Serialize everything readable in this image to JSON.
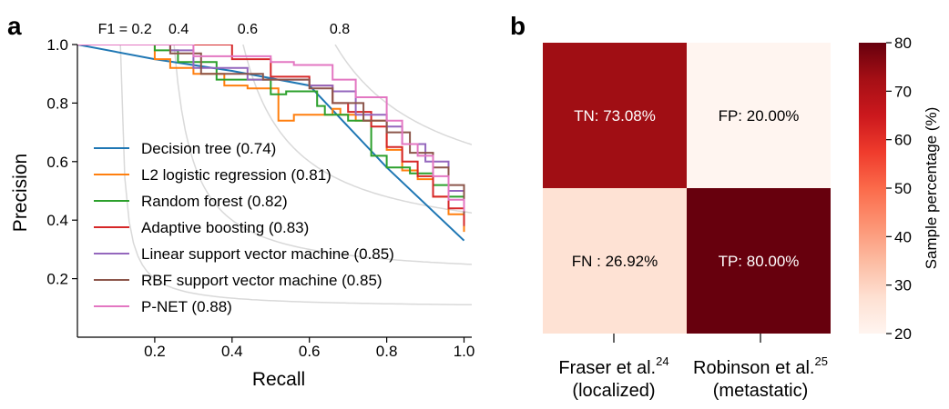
{
  "panel_a": {
    "label": "a",
    "chart_data": {
      "type": "line",
      "xlabel": "Recall",
      "ylabel": "Precision",
      "xlim": [
        0,
        1.02
      ],
      "ylim": [
        0,
        1.0
      ],
      "xticks": [
        "0.2",
        "0.4",
        "0.6",
        "0.8",
        "1.0"
      ],
      "xtick_values": [
        0.2,
        0.4,
        0.6,
        0.8,
        1.0
      ],
      "yticks": [
        "0.2",
        "0.4",
        "0.6",
        "0.8",
        "1.0"
      ],
      "ytick_values": [
        0.2,
        0.4,
        0.6,
        0.8,
        1.0
      ],
      "iso_f1": {
        "values": [
          0.2,
          0.4,
          0.6,
          0.8
        ],
        "labels": [
          "F1 = 0.2",
          "0.4",
          "0.6",
          "0.8"
        ],
        "color": "#d9d9d9"
      },
      "legend_position": "lower-left",
      "series": [
        {
          "name": "Decision tree (0.74)",
          "color": "#1f77b4",
          "x": [
            0,
            0.2,
            0.4,
            0.6,
            0.8,
            1.0
          ],
          "y": [
            1.0,
            0.95,
            0.91,
            0.86,
            0.58,
            0.33
          ]
        },
        {
          "name": "L2 logistic regression (0.81)",
          "color": "#ff7f0e",
          "x": [
            0,
            0.2,
            0.2,
            0.24,
            0.24,
            0.3,
            0.3,
            0.38,
            0.38,
            0.44,
            0.44,
            0.52,
            0.52,
            0.56,
            0.56,
            0.66,
            0.66,
            0.68,
            0.68,
            0.72,
            0.72,
            0.8,
            0.8,
            0.84,
            0.84,
            0.88,
            0.88,
            0.92,
            0.92,
            0.96,
            0.96,
            1.0,
            1.0
          ],
          "y": [
            1.0,
            1.0,
            0.95,
            0.95,
            0.92,
            0.92,
            0.9,
            0.9,
            0.86,
            0.86,
            0.85,
            0.85,
            0.74,
            0.74,
            0.76,
            0.76,
            0.78,
            0.78,
            0.76,
            0.76,
            0.74,
            0.74,
            0.64,
            0.64,
            0.57,
            0.57,
            0.54,
            0.54,
            0.48,
            0.48,
            0.42,
            0.42,
            0.36
          ]
        },
        {
          "name": "Random forest (0.82)",
          "color": "#2ca02c",
          "x": [
            0,
            0.2,
            0.2,
            0.26,
            0.26,
            0.36,
            0.36,
            0.5,
            0.5,
            0.54,
            0.54,
            0.62,
            0.62,
            0.64,
            0.64,
            0.7,
            0.7,
            0.76,
            0.76,
            0.8,
            0.8,
            0.86,
            0.86,
            0.92,
            0.92,
            0.96,
            0.96,
            1.0,
            1.0
          ],
          "y": [
            1.0,
            1.0,
            0.98,
            0.98,
            0.94,
            0.94,
            0.88,
            0.88,
            0.83,
            0.83,
            0.84,
            0.84,
            0.79,
            0.79,
            0.76,
            0.76,
            0.74,
            0.74,
            0.62,
            0.62,
            0.58,
            0.58,
            0.56,
            0.56,
            0.52,
            0.52,
            0.48,
            0.48,
            0.38
          ]
        },
        {
          "name": "Adaptive boosting (0.83)",
          "color": "#d62728",
          "x": [
            0,
            0.3,
            0.3,
            0.4,
            0.4,
            0.5,
            0.5,
            0.6,
            0.6,
            0.66,
            0.66,
            0.7,
            0.7,
            0.76,
            0.76,
            0.8,
            0.8,
            0.84,
            0.84,
            0.88,
            0.88,
            0.92,
            0.92,
            0.96,
            0.96,
            1.0,
            1.0
          ],
          "y": [
            1.0,
            1.0,
            1.0,
            1.0,
            0.95,
            0.95,
            0.89,
            0.89,
            0.86,
            0.86,
            0.8,
            0.8,
            0.77,
            0.77,
            0.72,
            0.72,
            0.65,
            0.65,
            0.6,
            0.6,
            0.55,
            0.55,
            0.48,
            0.48,
            0.44,
            0.44,
            0.38
          ]
        },
        {
          "name": "Linear support vector machine (0.85)",
          "color": "#9467bd",
          "x": [
            0,
            0.24,
            0.24,
            0.3,
            0.3,
            0.44,
            0.44,
            0.6,
            0.6,
            0.66,
            0.66,
            0.72,
            0.72,
            0.8,
            0.8,
            0.84,
            0.84,
            0.9,
            0.9,
            0.96,
            0.96,
            1.0,
            1.0
          ],
          "y": [
            1.0,
            1.0,
            0.98,
            0.98,
            0.92,
            0.92,
            0.88,
            0.88,
            0.86,
            0.86,
            0.84,
            0.84,
            0.76,
            0.76,
            0.72,
            0.72,
            0.66,
            0.66,
            0.6,
            0.6,
            0.5,
            0.5,
            0.45
          ]
        },
        {
          "name": "RBF support vector machine (0.85)",
          "color": "#8c564b",
          "x": [
            0,
            0.24,
            0.24,
            0.32,
            0.32,
            0.48,
            0.48,
            0.6,
            0.6,
            0.66,
            0.66,
            0.74,
            0.74,
            0.8,
            0.8,
            0.86,
            0.86,
            0.92,
            0.92,
            0.96,
            0.96,
            1.0,
            1.0
          ],
          "y": [
            1.0,
            1.0,
            0.97,
            0.97,
            0.9,
            0.9,
            0.88,
            0.88,
            0.85,
            0.85,
            0.8,
            0.8,
            0.74,
            0.74,
            0.7,
            0.7,
            0.63,
            0.63,
            0.58,
            0.58,
            0.52,
            0.52,
            0.42
          ]
        },
        {
          "name": "P-NET (0.88)",
          "color": "#e377c2",
          "x": [
            0,
            0.3,
            0.3,
            0.5,
            0.5,
            0.56,
            0.56,
            0.66,
            0.66,
            0.72,
            0.72,
            0.8,
            0.8,
            0.84,
            0.84,
            0.88,
            0.88,
            0.92,
            0.92,
            0.96,
            0.96,
            1.0,
            1.0
          ],
          "y": [
            1.0,
            1.0,
            0.96,
            0.96,
            0.94,
            0.94,
            0.93,
            0.93,
            0.88,
            0.88,
            0.82,
            0.82,
            0.74,
            0.74,
            0.66,
            0.66,
            0.62,
            0.62,
            0.55,
            0.55,
            0.47,
            0.47,
            0.43
          ]
        }
      ]
    }
  },
  "panel_b": {
    "label": "b",
    "chart_data": {
      "type": "heatmap",
      "cells": [
        {
          "text": "TN: 73.08%",
          "value": 73.08
        },
        {
          "text": "FP: 20.00%",
          "value": 20.0
        },
        {
          "text": "FN : 26.92%",
          "value": 26.92
        },
        {
          "text": "TP: 80.00%",
          "value": 80.0
        }
      ],
      "columns": [
        {
          "line1": "Fraser et al.",
          "sup": "24",
          "line2": "(localized)"
        },
        {
          "line1": "Robinson et al.",
          "sup": "25",
          "line2": "(metastatic)"
        }
      ],
      "colorbar": {
        "label": "Sample percentage (%)",
        "range": [
          20,
          80
        ],
        "ticks": [
          "20",
          "30",
          "40",
          "50",
          "60",
          "70",
          "80"
        ],
        "tick_values": [
          20,
          30,
          40,
          50,
          60,
          70,
          80
        ],
        "colors": [
          "#fff5f0",
          "#fee0d2",
          "#fcbba1",
          "#fc9272",
          "#fb6a4a",
          "#ef3b2c",
          "#cb181d",
          "#a50f15",
          "#67000d"
        ]
      }
    }
  }
}
